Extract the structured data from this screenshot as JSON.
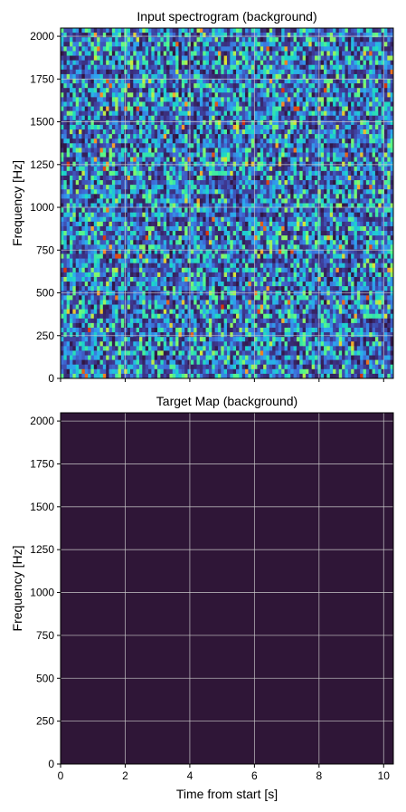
{
  "chart_data": [
    {
      "type": "heatmap",
      "title": "Input spectrogram (background)",
      "xlabel": "",
      "ylabel": "Frequency [Hz]",
      "xlim": [
        0,
        10.3
      ],
      "ylim": [
        0,
        2048
      ],
      "xticks": [
        0,
        2,
        4,
        6,
        8,
        10
      ],
      "yticks": [
        0,
        250,
        500,
        750,
        1000,
        1250,
        1500,
        1750,
        2000
      ],
      "x_tick_labels_shown": false,
      "grid": true,
      "colormap": "jet",
      "colormap_colors": [
        "#30123b",
        "#3e378f",
        "#3f6bd7",
        "#2da8f0",
        "#1bd6c8",
        "#61fb82",
        "#d5e837",
        "#fb9a2b",
        "#d7310b"
      ],
      "content": "random background noise, no visible signal"
    },
    {
      "type": "heatmap",
      "title": "Target Map (background)",
      "xlabel": "Time from start [s]",
      "ylabel": "Frequency [Hz]",
      "xlim": [
        0,
        10.3
      ],
      "ylim": [
        0,
        2048
      ],
      "xticks": [
        0,
        2,
        4,
        6,
        8,
        10
      ],
      "yticks": [
        0,
        250,
        500,
        750,
        1000,
        1250,
        1500,
        1750,
        2000
      ],
      "x_tick_labels_shown": true,
      "grid": true,
      "fill_color": "#2f1637",
      "content": "uniform value, no target present"
    }
  ],
  "colors": {
    "grid": "#c9c9c9",
    "axis": "#000000"
  }
}
